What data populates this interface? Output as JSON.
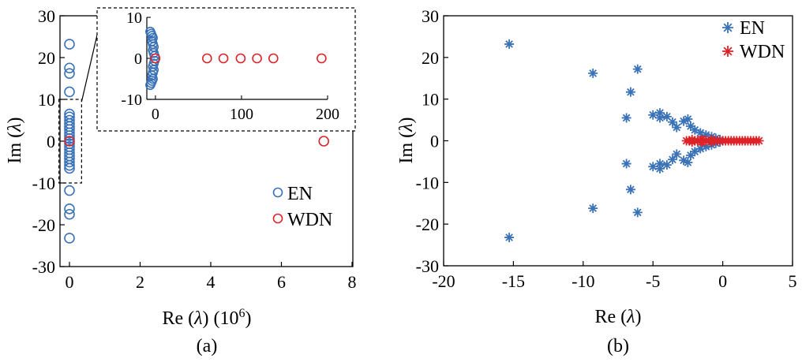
{
  "colors": {
    "en": "#3a72b8",
    "wdn": "#dc2328",
    "axis": "#000000"
  },
  "chart_data": [
    {
      "panel": "a",
      "type": "scatter",
      "caption": "(a)",
      "xlabel_html": [
        "Re (",
        "λ",
        ") (10",
        "6",
        ")"
      ],
      "ylabel_html": [
        "Im (",
        "λ",
        ")"
      ],
      "xlim": [
        0,
        8
      ],
      "ylim": [
        -30,
        30
      ],
      "xticks": [
        0,
        2,
        4,
        6,
        8
      ],
      "yticks": [
        -30,
        -20,
        -10,
        0,
        10,
        20,
        30
      ],
      "marker": "circle",
      "legend_placement": "lower-right",
      "series": [
        {
          "name": "EN",
          "color_key": "en",
          "points": [
            [
              0,
              23.2
            ],
            [
              0,
              17.5
            ],
            [
              0,
              16.2
            ],
            [
              0,
              11.8
            ],
            [
              0,
              6.5
            ],
            [
              0,
              5.8
            ],
            [
              0,
              5.0
            ],
            [
              0,
              4.2
            ],
            [
              0,
              3.5
            ],
            [
              0,
              2.8
            ],
            [
              0,
              2.0
            ],
            [
              0,
              1.3
            ],
            [
              0,
              0.6
            ],
            [
              0,
              -0.6
            ],
            [
              0,
              -1.3
            ],
            [
              0,
              -2.0
            ],
            [
              0,
              -2.8
            ],
            [
              0,
              -3.5
            ],
            [
              0,
              -4.2
            ],
            [
              0,
              -5.0
            ],
            [
              0,
              -5.8
            ],
            [
              0,
              -6.5
            ],
            [
              0,
              -11.8
            ],
            [
              0,
              -16.2
            ],
            [
              0,
              -17.5
            ],
            [
              0,
              -23.2
            ]
          ]
        },
        {
          "name": "WDN",
          "color_key": "wdn",
          "points": [
            [
              0,
              0
            ],
            [
              7.2,
              0
            ]
          ]
        }
      ],
      "zoom_box": {
        "xlim": [
          -0.12,
          0.12
        ],
        "ylim": [
          -10,
          10
        ]
      },
      "inset": {
        "xlim": [
          -10,
          200
        ],
        "ylim": [
          -10,
          10
        ],
        "xticks": [
          0,
          100,
          200
        ],
        "yticks": [
          -10,
          0,
          10
        ],
        "series": [
          {
            "name": "EN",
            "color_key": "en",
            "points": [
              [
                -6,
                6.5
              ],
              [
                -5,
                6.0
              ],
              [
                -4,
                5.5
              ],
              [
                -3,
                5.0
              ],
              [
                -4,
                4.2
              ],
              [
                -3,
                3.5
              ],
              [
                -2,
                2.8
              ],
              [
                -3,
                2.0
              ],
              [
                -2,
                1.3
              ],
              [
                -1,
                0.6
              ],
              [
                -6,
                -6.5
              ],
              [
                -5,
                -6.0
              ],
              [
                -4,
                -5.5
              ],
              [
                -3,
                -5.0
              ],
              [
                -4,
                -4.2
              ],
              [
                -3,
                -3.5
              ],
              [
                -2,
                -2.8
              ],
              [
                -3,
                -2.0
              ],
              [
                -2,
                -1.3
              ],
              [
                -1,
                -0.6
              ]
            ]
          },
          {
            "name": "WDN",
            "color_key": "wdn",
            "points": [
              [
                0,
                0
              ],
              [
                60,
                0
              ],
              [
                79,
                0
              ],
              [
                99,
                0
              ],
              [
                118,
                0
              ],
              [
                137,
                0
              ],
              [
                193,
                0
              ]
            ]
          }
        ]
      }
    },
    {
      "panel": "b",
      "type": "scatter",
      "caption": "(b)",
      "xlabel_html": [
        "Re (",
        "λ",
        ")"
      ],
      "ylabel_html": [
        "Im (",
        "λ",
        ")"
      ],
      "xlim": [
        -20,
        5
      ],
      "ylim": [
        -30,
        30
      ],
      "xticks": [
        -20,
        -15,
        -10,
        -5,
        0,
        5
      ],
      "yticks": [
        -30,
        -20,
        -10,
        0,
        10,
        20,
        30
      ],
      "marker": "asterisk",
      "legend_placement": "top-right",
      "series": [
        {
          "name": "EN",
          "color_key": "en",
          "points": [
            [
              -15.3,
              23.2
            ],
            [
              -9.3,
              16.2
            ],
            [
              -6.1,
              17.2
            ],
            [
              -6.6,
              11.7
            ],
            [
              -6.9,
              5.5
            ],
            [
              -5.0,
              6.2
            ],
            [
              -4.5,
              6.7
            ],
            [
              -4.5,
              5.5
            ],
            [
              -4.0,
              5.8
            ],
            [
              -3.6,
              4.5
            ],
            [
              -3.3,
              3.2
            ],
            [
              -2.8,
              4.7
            ],
            [
              -2.5,
              5.2
            ],
            [
              -2.3,
              3.5
            ],
            [
              -2.0,
              2.6
            ],
            [
              -1.6,
              1.9
            ],
            [
              -1.2,
              1.4
            ],
            [
              -0.8,
              1.0
            ],
            [
              -0.5,
              0.6
            ],
            [
              -0.2,
              0.3
            ],
            [
              -15.3,
              -23.2
            ],
            [
              -9.3,
              -16.2
            ],
            [
              -6.1,
              -17.2
            ],
            [
              -6.6,
              -11.7
            ],
            [
              -6.9,
              -5.5
            ],
            [
              -5.0,
              -6.2
            ],
            [
              -4.5,
              -6.7
            ],
            [
              -4.5,
              -5.5
            ],
            [
              -4.0,
              -5.8
            ],
            [
              -3.6,
              -4.5
            ],
            [
              -3.3,
              -3.2
            ],
            [
              -2.8,
              -4.7
            ],
            [
              -2.5,
              -5.2
            ],
            [
              -2.3,
              -3.5
            ],
            [
              -2.0,
              -2.6
            ],
            [
              -1.6,
              -1.9
            ],
            [
              -1.2,
              -1.4
            ],
            [
              -0.8,
              -1.0
            ],
            [
              -0.5,
              -0.6
            ],
            [
              -0.2,
              -0.3
            ]
          ]
        },
        {
          "name": "WDN",
          "color_key": "wdn",
          "points": [
            [
              -2.6,
              0
            ],
            [
              -2.4,
              0
            ],
            [
              -2.2,
              0
            ],
            [
              -2.0,
              0
            ],
            [
              -1.8,
              0
            ],
            [
              -1.6,
              0
            ],
            [
              -1.4,
              0
            ],
            [
              -1.2,
              0
            ],
            [
              -1.0,
              0
            ],
            [
              -0.8,
              0
            ],
            [
              -0.6,
              0
            ],
            [
              -0.4,
              0
            ],
            [
              -0.2,
              0
            ],
            [
              0,
              0
            ],
            [
              0.2,
              0
            ],
            [
              0.4,
              0
            ],
            [
              0.6,
              0
            ],
            [
              0.8,
              0
            ],
            [
              1.0,
              0
            ],
            [
              1.2,
              0
            ],
            [
              1.4,
              0
            ],
            [
              1.6,
              0
            ],
            [
              1.8,
              0
            ],
            [
              2.0,
              0
            ],
            [
              2.2,
              0
            ],
            [
              2.4,
              0
            ],
            [
              2.6,
              0
            ],
            [
              -2.2,
              0.3
            ],
            [
              -1.5,
              0.3
            ],
            [
              -0.8,
              0.3
            ],
            [
              -2.2,
              -0.3
            ],
            [
              -1.5,
              -0.3
            ],
            [
              -0.8,
              -0.3
            ]
          ]
        }
      ]
    }
  ]
}
